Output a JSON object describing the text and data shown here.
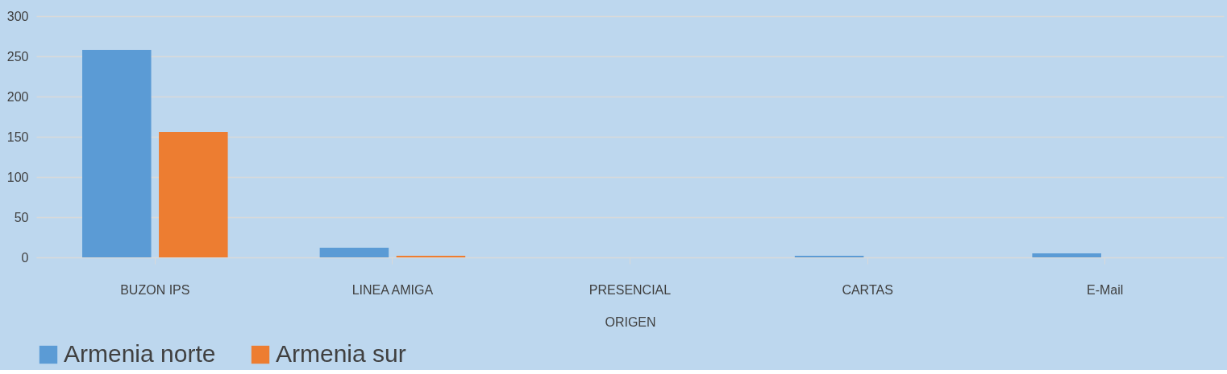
{
  "chart_data": {
    "type": "bar",
    "xlabel": "ORIGEN",
    "categories": [
      "BUZON IPS",
      "LINEA AMIGA",
      "PRESENCIAL",
      "CARTAS",
      "E-Mail"
    ],
    "series": [
      {
        "name": "Armenia norte",
        "color": "#5b9bd5",
        "values": [
          258,
          12,
          0,
          2,
          5
        ]
      },
      {
        "name": "Armenia sur",
        "color": "#ed7d31",
        "values": [
          156,
          2,
          0,
          0,
          0
        ]
      }
    ],
    "ylim": [
      0,
      300
    ],
    "yticks": [
      0,
      50,
      100,
      150,
      200,
      250,
      300
    ],
    "grid": "y",
    "legend": "bottom"
  }
}
